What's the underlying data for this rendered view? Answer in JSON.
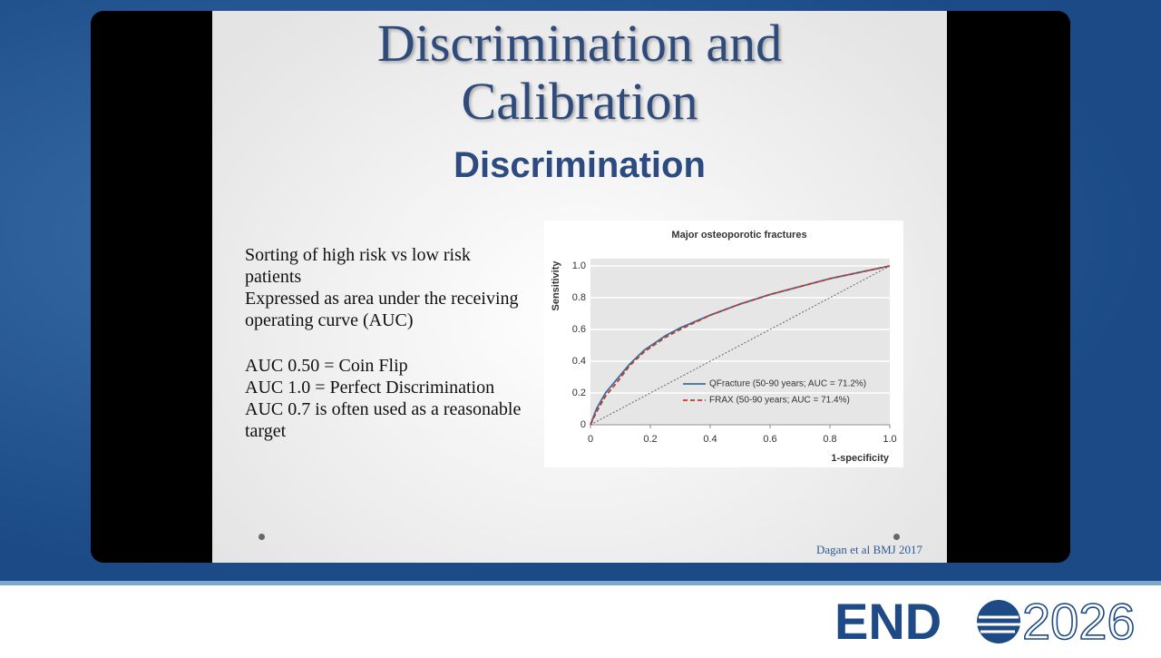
{
  "slide": {
    "title_lines": [
      "Discrimination and",
      "Calibration"
    ],
    "subtitle": "Discrimination",
    "body": [
      "Sorting of high risk vs low risk patients",
      "Expressed as area under the receiving operating curve (AUC)",
      "AUC 0.50 = Coin Flip",
      "AUC 1.0 = Perfect Discrimination",
      "AUC 0.7 is often used as a reasonable target"
    ],
    "citation": "Dagan et al BMJ 2017"
  },
  "logo": {
    "left": "END",
    "right": "2026"
  },
  "chart_data": {
    "type": "line",
    "title": "Major osteoporotic fractures",
    "xlabel": "1-specificity",
    "ylabel": "Sensitivity",
    "x": [
      0,
      0.02,
      0.05,
      0.09,
      0.13,
      0.18,
      0.25,
      0.3,
      0.4,
      0.5,
      0.6,
      0.7,
      0.8,
      0.9,
      1
    ],
    "series": [
      {
        "name": "QFracture (50-90 years; AUC = 71.2%)",
        "color": "#3a6f9e",
        "line_style": "solid",
        "values": [
          0,
          0.1,
          0.2,
          0.29,
          0.38,
          0.47,
          0.56,
          0.61,
          0.69,
          0.76,
          0.82,
          0.87,
          0.92,
          0.96,
          1
        ]
      },
      {
        "name": "FRAX (50-90 years; AUC = 71.4%)",
        "color": "#c0392b",
        "line_style": "dashed",
        "values": [
          0,
          0.08,
          0.18,
          0.27,
          0.37,
          0.46,
          0.55,
          0.6,
          0.69,
          0.76,
          0.82,
          0.87,
          0.92,
          0.96,
          1
        ]
      }
    ],
    "xlim": [
      0,
      1
    ],
    "ylim": [
      0,
      1
    ],
    "xticks": [
      0,
      0.2,
      0.4,
      0.6,
      0.8,
      {
        "value": 1,
        "label": "1.0"
      }
    ],
    "yticks": [
      0,
      0.2,
      0.4,
      0.6,
      0.8,
      {
        "value": 1,
        "label": "1.0"
      }
    ],
    "grid": true,
    "legend": "lower right"
  }
}
